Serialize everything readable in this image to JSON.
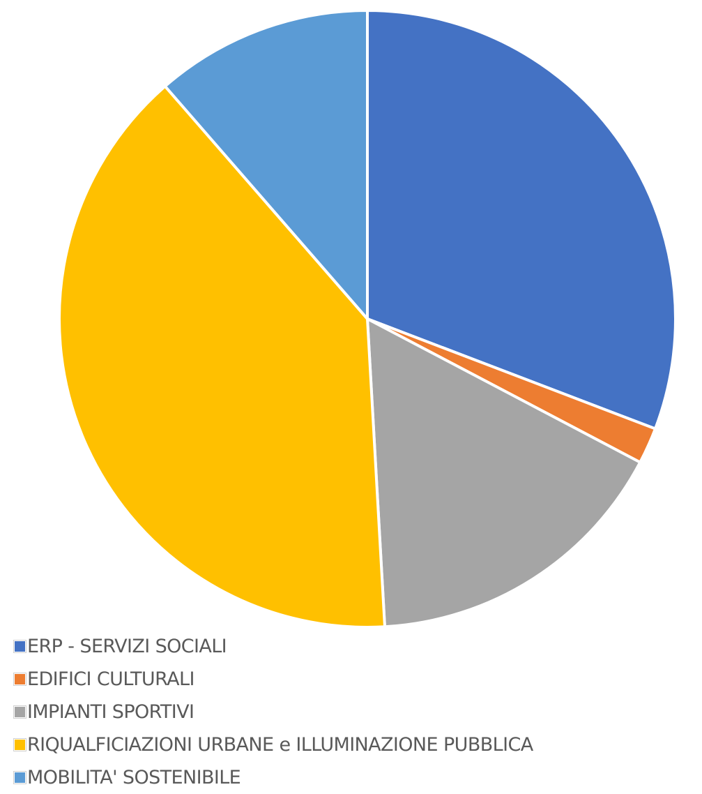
{
  "chart_data": {
    "type": "pie",
    "title": "",
    "categories": [
      "ERP - SERVIZI SOCIALI",
      "EDIFICI CULTURALI",
      "IMPIANTI SPORTIVI",
      "RIQUALFICIAZIONI URBANE e ILLUMINAZIONE PUBBLICA",
      "MOBILITA' SOSTENIBILE"
    ],
    "values": [
      30.8,
      1.9,
      16.4,
      39.5,
      11.4
    ],
    "unit": "%",
    "start_angle_deg": 0,
    "direction": "clockwise",
    "colors": [
      "#4472C4",
      "#ED7D31",
      "#A5A5A5",
      "#FFC000",
      "#5B9BD5"
    ],
    "legend_position": "bottom-left"
  }
}
